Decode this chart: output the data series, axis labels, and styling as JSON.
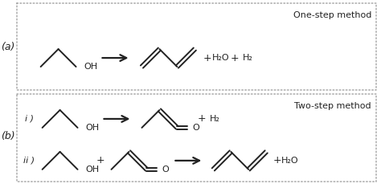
{
  "bg_color": "#ffffff",
  "line_color": "#222222",
  "text_color": "#222222",
  "label_a": "(a)",
  "label_b": "(b)",
  "label_i": "i )",
  "label_ii": "ii )",
  "title_a": "One-step method",
  "title_b": "Two-step method",
  "plus": "+",
  "h2o": "H₂O",
  "h2": "H₂",
  "oh": "OH",
  "o_label": "O",
  "figsize": [
    4.74,
    2.29
  ],
  "dpi": 100
}
